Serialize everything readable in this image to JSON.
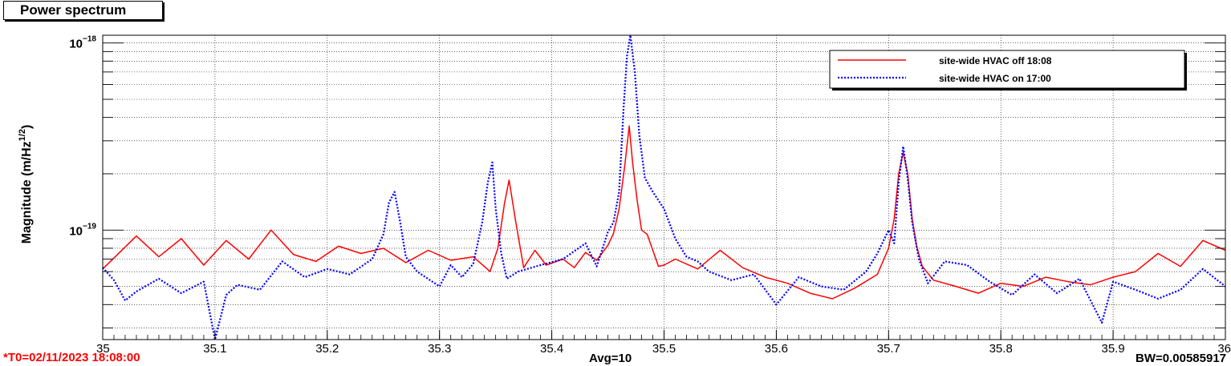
{
  "window": {
    "title": "Power spectrum"
  },
  "footer": {
    "t0_label": "*T0=02/11/2023 18:08:00",
    "avg_label": "Avg=10",
    "bw_label": "BW=0.00585917"
  },
  "colors": {
    "series_off": "#ff0000",
    "series_on": "#0000ff",
    "t0": "#ff0000"
  },
  "chart_data": {
    "type": "line",
    "title": "Power spectrum",
    "xlabel": "",
    "ylabel": "Magnitude (m/Hz^1/2)",
    "ylabel_parts": {
      "main": "Magnitude (m/Hz",
      "sup": "1/2",
      "end": ")"
    },
    "xlim": [
      35,
      36
    ],
    "ylim": [
      2.6e-20,
      1.1e-18
    ],
    "yscale": "log",
    "grid": true,
    "legend_position": "top-right",
    "x_ticks": [
      "35",
      "35.1",
      "35.2",
      "35.3",
      "35.4",
      "35.5",
      "35.6",
      "35.7",
      "35.8",
      "35.9",
      "36"
    ],
    "y_ticks": [
      {
        "value": 1e-19,
        "base": "10",
        "exp": "−19"
      },
      {
        "value": 1e-18,
        "base": "10",
        "exp": "−18"
      }
    ],
    "series": [
      {
        "name": "site-wide HVAC off 18:08",
        "style": "solid",
        "color": "#ff0000",
        "x": [
          35.0,
          35.03,
          35.05,
          35.07,
          35.09,
          35.11,
          35.13,
          35.15,
          35.17,
          35.19,
          35.21,
          35.23,
          35.25,
          35.27,
          35.29,
          35.31,
          35.33,
          35.345,
          35.352,
          35.358,
          35.362,
          35.368,
          35.375,
          35.385,
          35.395,
          35.41,
          35.42,
          35.43,
          35.44,
          35.45,
          35.455,
          35.46,
          35.465,
          35.469,
          35.472,
          35.476,
          35.48,
          35.485,
          35.49,
          35.495,
          35.5,
          35.51,
          35.53,
          35.55,
          35.57,
          35.59,
          35.61,
          35.63,
          35.65,
          35.67,
          35.69,
          35.7,
          35.705,
          35.709,
          35.713,
          35.717,
          35.721,
          35.725,
          35.73,
          35.74,
          35.76,
          35.78,
          35.8,
          35.82,
          35.84,
          35.86,
          35.88,
          35.9,
          35.92,
          35.94,
          35.96,
          35.98,
          36.0
        ],
        "y": [
          6.2e-20,
          9.3e-20,
          7.2e-20,
          9e-20,
          6.5e-20,
          8.8e-20,
          7e-20,
          1e-19,
          7.4e-20,
          6.8e-20,
          8.2e-20,
          7.5e-20,
          8e-20,
          6.7e-20,
          7.8e-20,
          6.9e-20,
          7.2e-20,
          6e-20,
          8e-20,
          1.4e-19,
          1.85e-19,
          1.1e-19,
          6.3e-20,
          7.8e-20,
          6.5e-20,
          7e-20,
          6.3e-20,
          7.6e-20,
          6.9e-20,
          8.3e-20,
          9.6e-20,
          1.3e-19,
          2.2e-19,
          3.6e-19,
          2.3e-19,
          1.45e-19,
          1e-19,
          9.5e-20,
          7.8e-20,
          6.4e-20,
          6.5e-20,
          7e-20,
          6.2e-20,
          7.8e-20,
          6.3e-20,
          5.6e-20,
          5.2e-20,
          4.6e-20,
          4.3e-20,
          4.9e-20,
          5.8e-20,
          8e-20,
          1.15e-19,
          2e-19,
          2.6e-19,
          2e-19,
          1.15e-19,
          8.2e-20,
          6.4e-20,
          5.4e-20,
          5e-20,
          4.6e-20,
          5.2e-20,
          5e-20,
          5.6e-20,
          5.3e-20,
          5.1e-20,
          5.6e-20,
          6e-20,
          7.5e-20,
          6.4e-20,
          8.8e-20,
          7.8e-20
        ]
      },
      {
        "name": "site-wide HVAC on 17:00",
        "style": "dotted",
        "color": "#0000ff",
        "x": [
          35.0,
          35.01,
          35.02,
          35.03,
          35.05,
          35.07,
          35.09,
          35.1,
          35.11,
          35.12,
          35.14,
          35.16,
          35.18,
          35.2,
          35.22,
          35.24,
          35.25,
          35.255,
          35.26,
          35.265,
          35.27,
          35.28,
          35.3,
          35.31,
          35.32,
          35.33,
          35.338,
          35.343,
          35.347,
          35.35,
          35.355,
          35.36,
          35.37,
          35.39,
          35.41,
          35.43,
          35.44,
          35.45,
          35.455,
          35.46,
          35.464,
          35.467,
          35.47,
          35.474,
          35.478,
          35.483,
          35.49,
          35.5,
          35.51,
          35.52,
          35.53,
          35.54,
          35.56,
          35.58,
          35.6,
          35.62,
          35.64,
          35.66,
          35.68,
          35.69,
          35.7,
          35.705,
          35.709,
          35.713,
          35.717,
          35.721,
          35.727,
          35.735,
          35.75,
          35.77,
          35.79,
          35.81,
          35.83,
          35.85,
          35.87,
          35.89,
          35.9,
          35.92,
          35.94,
          35.96,
          35.98,
          36.0
        ],
        "y": [
          6.3e-20,
          5.4e-20,
          4.2e-20,
          4.7e-20,
          5.5e-20,
          4.6e-20,
          5.3e-20,
          2.6e-20,
          4.5e-20,
          5.1e-20,
          4.8e-20,
          6.8e-20,
          5.6e-20,
          6.2e-20,
          5.8e-20,
          7e-20,
          9.5e-20,
          1.4e-19,
          1.6e-19,
          1.1e-19,
          7.2e-20,
          6e-20,
          5e-20,
          6.5e-20,
          5.6e-20,
          6.6e-20,
          1.1e-19,
          1.8e-19,
          2.3e-19,
          1.3e-19,
          7.5e-20,
          5.5e-20,
          6e-20,
          6.5e-20,
          7e-20,
          8.5e-20,
          6.4e-20,
          9.8e-20,
          1.1e-19,
          1.6e-19,
          4.5e-19,
          8.5e-19,
          1.1e-18,
          7e-19,
          3.2e-19,
          1.9e-19,
          1.6e-19,
          1.3e-19,
          9e-20,
          7.2e-20,
          6.8e-20,
          6e-20,
          5.4e-20,
          5.8e-20,
          4e-20,
          5.6e-20,
          5e-20,
          4.8e-20,
          6e-20,
          7.5e-20,
          1e-19,
          8.5e-20,
          1.8e-19,
          2.8e-19,
          1.9e-19,
          1.1e-19,
          7e-20,
          5.2e-20,
          6.8e-20,
          6.5e-20,
          5.3e-20,
          4.5e-20,
          5.8e-20,
          4.6e-20,
          5.5e-20,
          3.2e-20,
          5.3e-20,
          4.8e-20,
          4.3e-20,
          4.8e-20,
          6.2e-20,
          5e-20
        ]
      }
    ]
  }
}
